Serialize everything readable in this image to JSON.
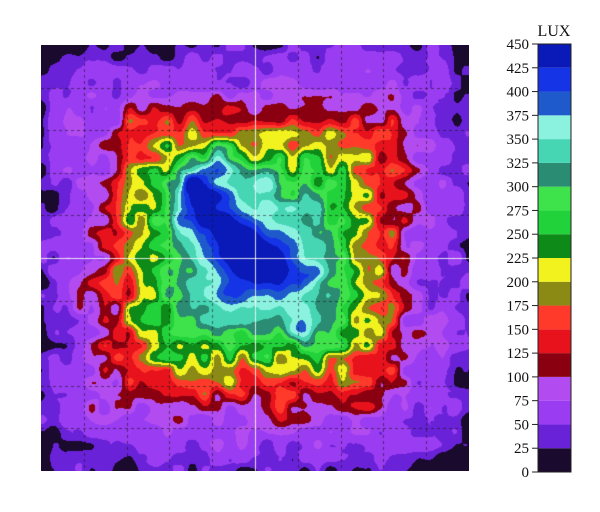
{
  "chart_data": {
    "type": "heatmap",
    "colorbar": {
      "unit": "LUX",
      "min": 0,
      "max": 450,
      "ticks": [
        0,
        25,
        50,
        75,
        100,
        125,
        150,
        175,
        200,
        225,
        250,
        275,
        300,
        325,
        350,
        375,
        400,
        425,
        450
      ],
      "tick_labels": [
        "0",
        "25",
        "50",
        "75",
        "100",
        "125",
        "150",
        "175",
        "200",
        "225",
        "250",
        "275",
        "300",
        "325",
        "350",
        "375",
        "400",
        "425",
        "450"
      ],
      "bands": [
        {
          "from": 0,
          "to": 25,
          "color": "#1a0a2e"
        },
        {
          "from": 25,
          "to": 50,
          "color": "#6a22d8"
        },
        {
          "from": 50,
          "to": 75,
          "color": "#9a3cf2"
        },
        {
          "from": 75,
          "to": 100,
          "color": "#b24cf0"
        },
        {
          "from": 100,
          "to": 125,
          "color": "#8a0010"
        },
        {
          "from": 125,
          "to": 150,
          "color": "#e8121c"
        },
        {
          "from": 150,
          "to": 175,
          "color": "#ff3a2a"
        },
        {
          "from": 175,
          "to": 200,
          "color": "#8a8a14"
        },
        {
          "from": 200,
          "to": 225,
          "color": "#f2f21e"
        },
        {
          "from": 225,
          "to": 250,
          "color": "#0e8a18"
        },
        {
          "from": 250,
          "to": 275,
          "color": "#22d23a"
        },
        {
          "from": 275,
          "to": 300,
          "color": "#3ee24a"
        },
        {
          "from": 300,
          "to": 325,
          "color": "#2a8c72"
        },
        {
          "from": 325,
          "to": 350,
          "color": "#46d6b4"
        },
        {
          "from": 350,
          "to": 375,
          "color": "#8cf2e0"
        },
        {
          "from": 375,
          "to": 400,
          "color": "#1e5acc"
        },
        {
          "from": 400,
          "to": 425,
          "color": "#1434e6"
        },
        {
          "from": 425,
          "to": 450,
          "color": "#0a1ab8"
        }
      ]
    },
    "grid": true,
    "field_summary": {
      "edge_value": 55,
      "center_value": 340,
      "hotspot_peak": 430
    }
  }
}
